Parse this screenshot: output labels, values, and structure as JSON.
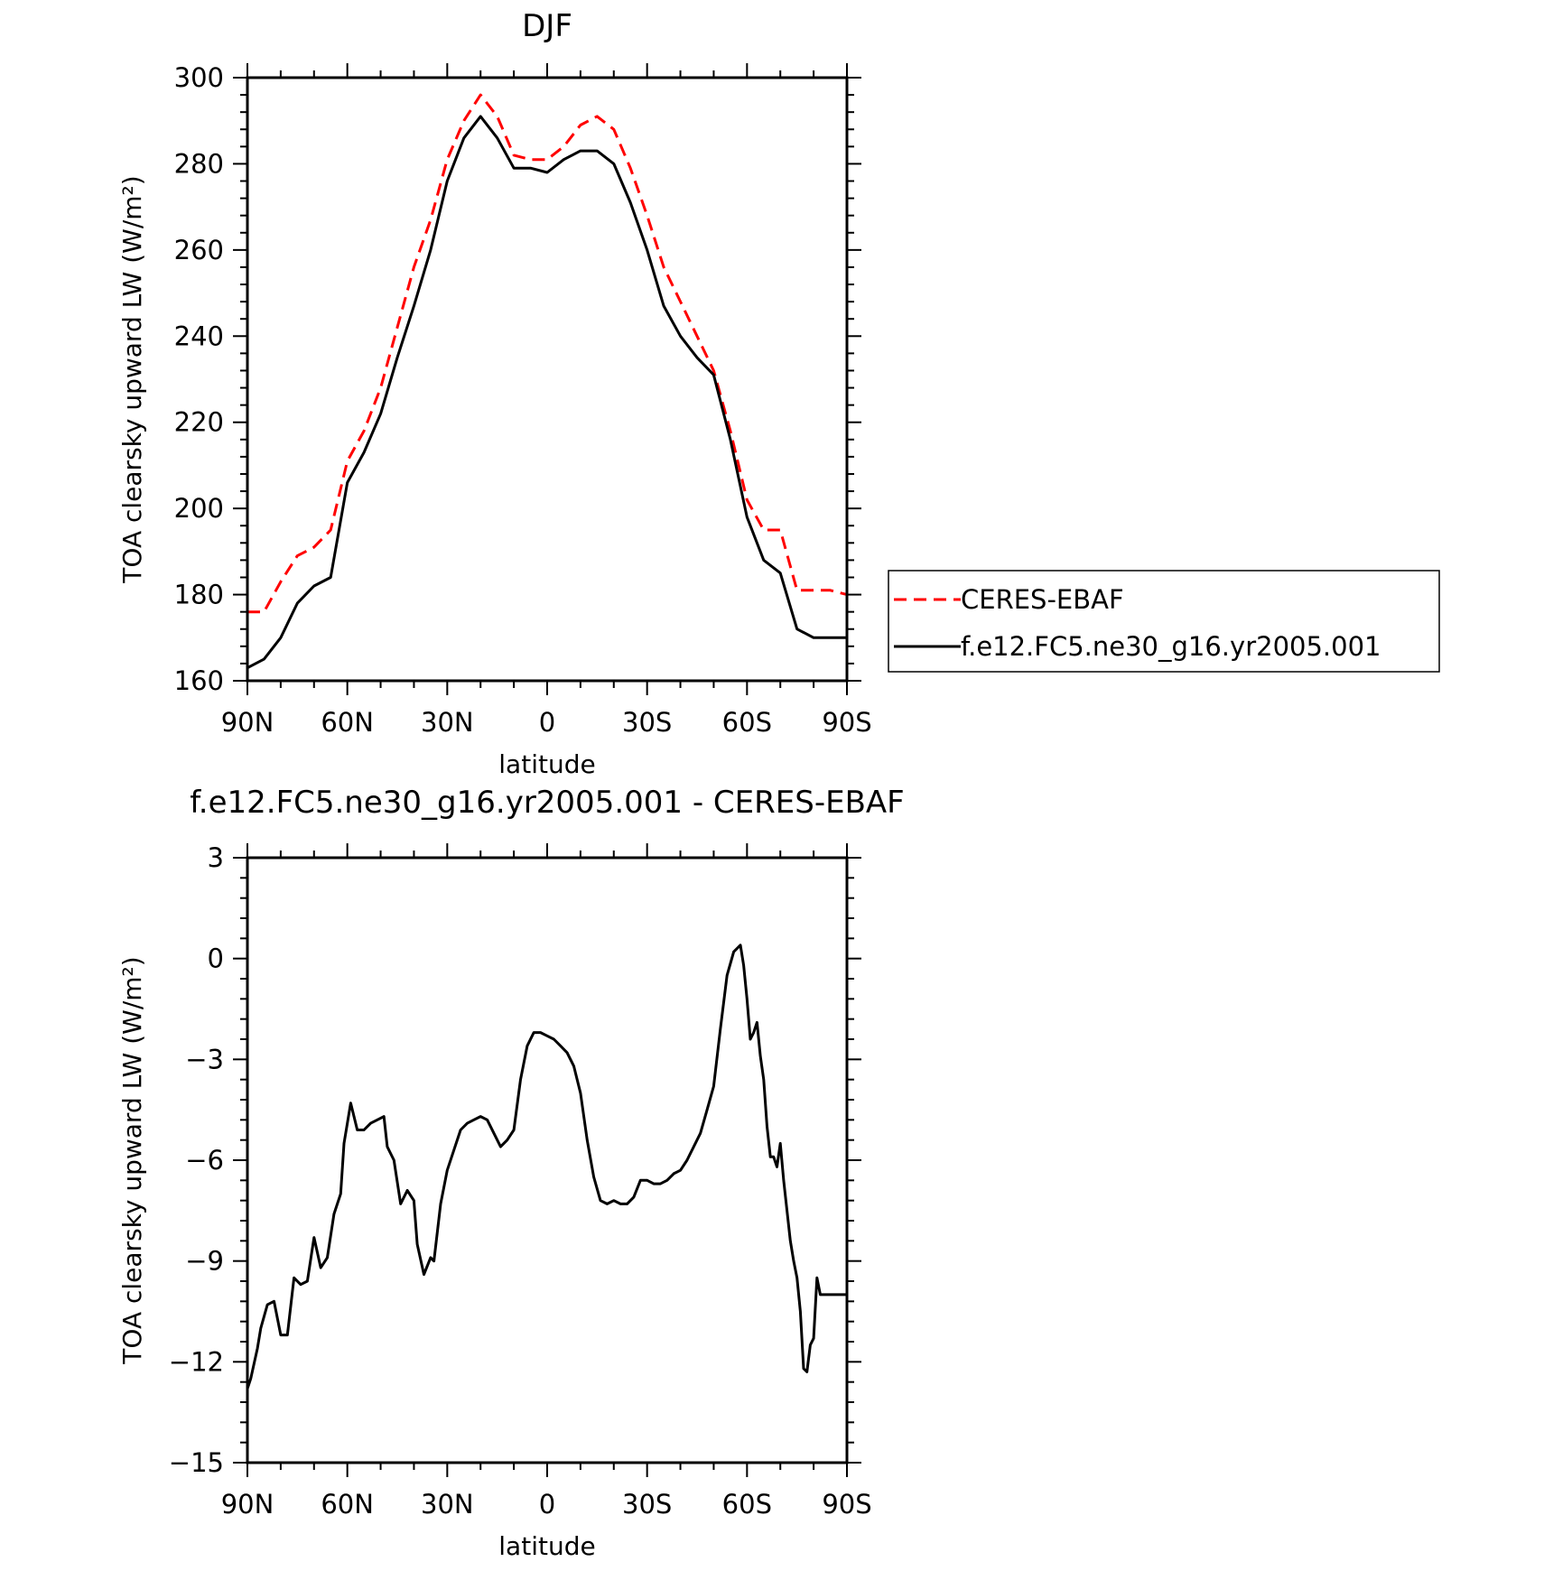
{
  "colors": {
    "background": "#ffffff",
    "axes": "#000000",
    "ceres_line": "#ff0000",
    "model_line": "#000000"
  },
  "chart_data": [
    {
      "type": "line",
      "title": "DJF",
      "xlabel": "latitude",
      "ylabel": "TOA clearsky upward LW (W/m²)",
      "x_tick_labels": [
        "90N",
        "60N",
        "30N",
        "0",
        "30S",
        "60S",
        "90S"
      ],
      "x_tick_values": [
        90,
        60,
        30,
        0,
        -30,
        -60,
        -90
      ],
      "xlim": [
        90,
        -90
      ],
      "ylim": [
        160,
        300
      ],
      "y_tick_values": [
        160,
        180,
        200,
        220,
        240,
        260,
        280,
        300
      ],
      "y_tick_labels": [
        "160",
        "180",
        "200",
        "220",
        "240",
        "260",
        "280",
        "300"
      ],
      "grid": false,
      "legend_position": "right",
      "x": [
        90,
        85,
        80,
        75,
        70,
        65,
        60,
        55,
        50,
        45,
        40,
        35,
        30,
        25,
        20,
        15,
        10,
        5,
        0,
        -5,
        -10,
        -15,
        -20,
        -25,
        -30,
        -35,
        -40,
        -45,
        -50,
        -55,
        -60,
        -65,
        -70,
        -75,
        -80,
        -85,
        -90
      ],
      "series": [
        {
          "name": "CERES-EBAF",
          "color": "#ff0000",
          "dash": "dashed",
          "values": [
            176,
            176,
            183,
            189,
            191,
            195,
            211,
            218,
            228,
            242,
            256,
            267,
            281,
            290,
            296,
            291,
            282,
            281,
            281,
            284,
            289,
            291,
            288,
            279,
            268,
            256,
            248,
            240,
            232,
            218,
            202,
            195,
            195,
            181,
            181,
            181,
            180
          ]
        },
        {
          "name": "f.e12.FC5.ne30_g16.yr2005.001",
          "color": "#000000",
          "dash": "solid",
          "values": [
            163,
            165,
            170,
            178,
            182,
            184,
            206,
            213,
            222,
            235,
            247,
            260,
            276,
            286,
            291,
            286,
            279,
            279,
            278,
            281,
            283,
            283,
            280,
            271,
            260,
            247,
            240,
            235,
            231,
            216,
            198,
            188,
            185,
            172,
            170,
            170,
            170
          ]
        }
      ]
    },
    {
      "type": "line",
      "title": "f.e12.FC5.ne30_g16.yr2005.001 - CERES-EBAF",
      "xlabel": "latitude",
      "ylabel": "TOA clearsky upward LW (W/m²)",
      "x_tick_labels": [
        "90N",
        "60N",
        "30N",
        "0",
        "30S",
        "60S",
        "90S"
      ],
      "x_tick_values": [
        90,
        60,
        30,
        0,
        -30,
        -60,
        -90
      ],
      "xlim": [
        90,
        -90
      ],
      "ylim": [
        -15,
        3
      ],
      "y_tick_values": [
        -15,
        -12,
        -9,
        -6,
        -3,
        0,
        3
      ],
      "y_tick_labels": [
        "−15",
        "−12",
        "−9",
        "−6",
        "−3",
        "0",
        "3"
      ],
      "grid": false,
      "series": [
        {
          "name": "",
          "color": "#000000",
          "x": [
            90,
            89,
            87,
            86,
            84,
            82,
            80,
            78,
            76,
            74,
            72,
            70,
            68,
            66,
            64,
            62,
            61,
            59,
            57,
            55,
            53,
            51,
            49,
            48,
            46,
            44,
            42,
            40,
            39,
            37,
            35,
            34,
            32,
            30,
            28,
            26,
            24,
            22,
            20,
            18,
            16,
            14,
            12,
            10,
            8,
            6,
            4,
            2,
            0,
            -2,
            -4,
            -6,
            -8,
            -10,
            -12,
            -14,
            -16,
            -18,
            -20,
            -22,
            -24,
            -26,
            -28,
            -30,
            -32,
            -34,
            -36,
            -38,
            -40,
            -42,
            -44,
            -46,
            -48,
            -50,
            -52,
            -54,
            -56,
            -58,
            -59,
            -60,
            -61,
            -62,
            -63,
            -64,
            -65,
            -66,
            -67,
            -68,
            -69,
            -70,
            -71,
            -72,
            -73,
            -74,
            -75,
            -76,
            -77,
            -78,
            -79,
            -80,
            -81,
            -82,
            -83,
            -84,
            -85,
            -86,
            -87,
            -88,
            -89,
            -90
          ],
          "values": [
            -12.8,
            -12.5,
            -11.6,
            -11.0,
            -10.3,
            -10.2,
            -11.2,
            -11.2,
            -9.5,
            -9.7,
            -9.6,
            -8.3,
            -9.2,
            -8.9,
            -7.6,
            -7.0,
            -5.5,
            -4.3,
            -5.1,
            -5.1,
            -4.9,
            -4.8,
            -4.7,
            -5.6,
            -6.0,
            -7.3,
            -6.9,
            -7.2,
            -8.5,
            -9.4,
            -8.9,
            -9.0,
            -7.3,
            -6.3,
            -5.7,
            -5.1,
            -4.9,
            -4.8,
            -4.7,
            -4.8,
            -5.2,
            -5.6,
            -5.4,
            -5.1,
            -3.6,
            -2.6,
            -2.2,
            -2.2,
            -2.3,
            -2.4,
            -2.6,
            -2.8,
            -3.2,
            -4.0,
            -5.4,
            -6.5,
            -7.2,
            -7.3,
            -7.2,
            -7.3,
            -7.3,
            -7.1,
            -6.6,
            -6.6,
            -6.7,
            -6.7,
            -6.6,
            -6.4,
            -6.3,
            -6.0,
            -5.6,
            -5.2,
            -4.5,
            -3.8,
            -2.1,
            -0.5,
            0.2,
            0.4,
            -0.2,
            -1.2,
            -2.4,
            -2.2,
            -1.9,
            -2.9,
            -3.6,
            -5.0,
            -5.9,
            -5.9,
            -6.2,
            -5.5,
            -6.6,
            -7.5,
            -8.4,
            -9.0,
            -9.5,
            -10.5,
            -12.2,
            -12.3,
            -11.5,
            -11.3,
            -9.5,
            -10.0,
            -10.0,
            -10.0,
            -10.0,
            -10.0,
            -10.0,
            -10.0,
            -10.0,
            -10.0
          ]
        }
      ]
    }
  ]
}
